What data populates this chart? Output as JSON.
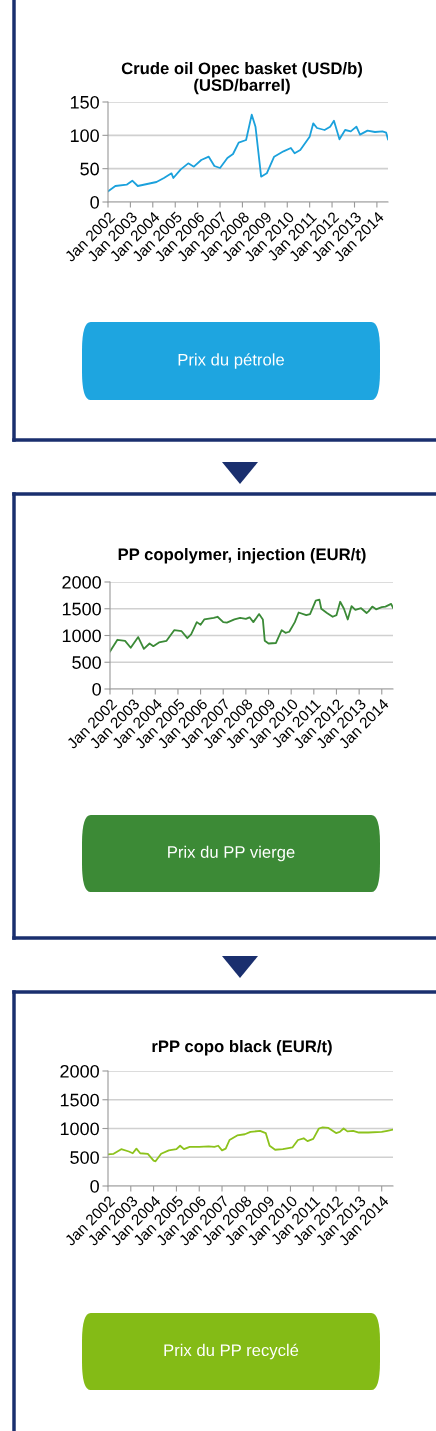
{
  "chart_data": [
    {
      "type": "line",
      "title": "Crude oil Opec basket (USD/b)\n(USD/barrel)",
      "annotations": [
        "Prix du pétrole"
      ],
      "series": [
        {
          "color": "#1ba1dc",
          "x": [
            "2002-01",
            "2002-05",
            "2002-11",
            "2003-02",
            "2003-05",
            "2003-10",
            "2004-03",
            "2004-07",
            "2004-11",
            "2004-12",
            "2005-04",
            "2005-08",
            "2005-11",
            "2006-03",
            "2006-07",
            "2006-10",
            "2007-01",
            "2007-05",
            "2007-08",
            "2007-11",
            "2008-03",
            "2008-06",
            "2008-08",
            "2008-11",
            "2009-02",
            "2009-06",
            "2009-11",
            "2010-03",
            "2010-05",
            "2010-08",
            "2011-01",
            "2011-03",
            "2011-05",
            "2011-09",
            "2011-12",
            "2012-02",
            "2012-05",
            "2012-08",
            "2012-11",
            "2013-02",
            "2013-04",
            "2013-08",
            "2013-12",
            "2014-04",
            "2014-06",
            "2014-07"
          ],
          "values": [
            16,
            24,
            26,
            32,
            24,
            27,
            30,
            36,
            43,
            36,
            49,
            58,
            53,
            63,
            68,
            54,
            51,
            66,
            72,
            89,
            93,
            131,
            113,
            38,
            43,
            68,
            76,
            81,
            73,
            78,
            98,
            118,
            111,
            108,
            113,
            122,
            94,
            108,
            106,
            113,
            101,
            107,
            105,
            106,
            104,
            94
          ]
        }
      ],
      "xlim": [
        "2002-01",
        "2014-07"
      ],
      "xticks": [
        {
          "value": "2002-01",
          "label": "Jan 2002"
        },
        {
          "value": "2003-01",
          "label": "Jan 2003"
        },
        {
          "value": "2004-01",
          "label": "Jan 2004"
        },
        {
          "value": "2005-01",
          "label": "Jan 2005"
        },
        {
          "value": "2006-01",
          "label": "Jan 2006"
        },
        {
          "value": "2007-01",
          "label": "Jan 2007"
        },
        {
          "value": "2008-01",
          "label": "Jan 2008"
        },
        {
          "value": "2009-01",
          "label": "Jan 2009"
        },
        {
          "value": "2010-01",
          "label": "Jan 2010"
        },
        {
          "value": "2011-01",
          "label": "Jan 2011"
        },
        {
          "value": "2012-01",
          "label": "Jan 2012"
        },
        {
          "value": "2013-01",
          "label": "Jan 2013"
        },
        {
          "value": "2014-01",
          "label": "Jan 2014"
        }
      ],
      "ylim": [
        0,
        150
      ],
      "yticks": [
        0,
        50,
        100,
        150
      ],
      "grid": "y",
      "legend": false
    },
    {
      "type": "line",
      "title": "PP copolymer, injection (EUR/t)",
      "annotations": [
        "Prix du PP vierge"
      ],
      "series": [
        {
          "color": "#3b8a37",
          "x": [
            "2002-01",
            "2002-05",
            "2002-09",
            "2002-12",
            "2003-04",
            "2003-07",
            "2003-10",
            "2003-12",
            "2004-03",
            "2004-07",
            "2004-11",
            "2005-03",
            "2005-06",
            "2005-08",
            "2005-11",
            "2006-01",
            "2006-03",
            "2006-08",
            "2006-10",
            "2007-01",
            "2007-03",
            "2007-07",
            "2007-10",
            "2008-01",
            "2008-03",
            "2008-05",
            "2008-08",
            "2008-10",
            "2008-11",
            "2009-01",
            "2009-05",
            "2009-08",
            "2009-10",
            "2009-12",
            "2010-03",
            "2010-05",
            "2010-09",
            "2010-11",
            "2011-02",
            "2011-04",
            "2011-05",
            "2011-08",
            "2011-11",
            "2012-01",
            "2012-03",
            "2012-05",
            "2012-07",
            "2012-09",
            "2012-11",
            "2013-02",
            "2013-05",
            "2013-06",
            "2013-08",
            "2013-10",
            "2014-01",
            "2014-03",
            "2014-06",
            "2014-07"
          ],
          "values": [
            700,
            920,
            900,
            770,
            970,
            750,
            850,
            800,
            870,
            900,
            1100,
            1080,
            950,
            1020,
            1250,
            1200,
            1300,
            1330,
            1350,
            1250,
            1240,
            1300,
            1330,
            1310,
            1340,
            1250,
            1400,
            1300,
            900,
            850,
            860,
            1100,
            1050,
            1070,
            1250,
            1430,
            1380,
            1400,
            1650,
            1670,
            1500,
            1420,
            1350,
            1380,
            1630,
            1500,
            1300,
            1550,
            1480,
            1510,
            1420,
            1450,
            1540,
            1490,
            1530,
            1540,
            1590,
            1520
          ]
        }
      ],
      "xlim": [
        "2002-01",
        "2014-07"
      ],
      "xticks": [
        {
          "value": "2002-01",
          "label": "Jan 2002"
        },
        {
          "value": "2003-01",
          "label": "Jan 2003"
        },
        {
          "value": "2004-01",
          "label": "Jan 2004"
        },
        {
          "value": "2005-01",
          "label": "Jan 2005"
        },
        {
          "value": "2006-01",
          "label": "Jan 2006"
        },
        {
          "value": "2007-01",
          "label": "Jan 2007"
        },
        {
          "value": "2008-01",
          "label": "Jan 2008"
        },
        {
          "value": "2009-01",
          "label": "Jan 2009"
        },
        {
          "value": "2010-01",
          "label": "Jan 2010"
        },
        {
          "value": "2011-01",
          "label": "Jan 2011"
        },
        {
          "value": "2012-01",
          "label": "Jan 2012"
        },
        {
          "value": "2013-01",
          "label": "Jan 2013"
        },
        {
          "value": "2014-01",
          "label": "Jan 2014"
        }
      ],
      "ylim": [
        0,
        2000
      ],
      "yticks": [
        0,
        500,
        1000,
        1500,
        2000
      ],
      "grid": "y",
      "legend": false
    },
    {
      "type": "line",
      "title": "rPP copo black (EUR/t)",
      "annotations": [
        "Prix du PP recyclé"
      ],
      "series": [
        {
          "color": "#8cc21c",
          "x": [
            "2002-01",
            "2002-04",
            "2002-08",
            "2002-12",
            "2003-02",
            "2003-04",
            "2003-06",
            "2003-10",
            "2004-01",
            "2004-02",
            "2004-05",
            "2004-09",
            "2005-01",
            "2005-03",
            "2005-05",
            "2005-08",
            "2006-01",
            "2006-06",
            "2006-09",
            "2006-11",
            "2007-01",
            "2007-03",
            "2007-05",
            "2007-09",
            "2008-01",
            "2008-04",
            "2008-09",
            "2008-12",
            "2009-02",
            "2009-05",
            "2009-09",
            "2009-12",
            "2010-02",
            "2010-05",
            "2010-08",
            "2010-10",
            "2011-01",
            "2011-04",
            "2011-06",
            "2011-09",
            "2012-01",
            "2012-03",
            "2012-05",
            "2012-07",
            "2012-10",
            "2013-01",
            "2013-06",
            "2014-01",
            "2014-04",
            "2014-07"
          ],
          "values": [
            550,
            560,
            640,
            600,
            570,
            650,
            570,
            560,
            440,
            430,
            560,
            620,
            640,
            700,
            640,
            680,
            680,
            690,
            680,
            700,
            620,
            650,
            800,
            880,
            900,
            940,
            960,
            920,
            700,
            630,
            640,
            660,
            670,
            800,
            830,
            780,
            820,
            1000,
            1020,
            1010,
            920,
            940,
            1000,
            950,
            960,
            930,
            930,
            940,
            960,
            980
          ]
        }
      ],
      "xlim": [
        "2002-01",
        "2014-07"
      ],
      "xticks": [
        {
          "value": "2002-01",
          "label": "Jan 2002"
        },
        {
          "value": "2003-01",
          "label": "Jan 2003"
        },
        {
          "value": "2004-01",
          "label": "Jan 2004"
        },
        {
          "value": "2005-01",
          "label": "Jan 2005"
        },
        {
          "value": "2006-01",
          "label": "Jan 2006"
        },
        {
          "value": "2007-01",
          "label": "Jan 2007"
        },
        {
          "value": "2008-01",
          "label": "Jan 2008"
        },
        {
          "value": "2009-01",
          "label": "Jan 2009"
        },
        {
          "value": "2010-01",
          "label": "Jan 2010"
        },
        {
          "value": "2011-01",
          "label": "Jan 2011"
        },
        {
          "value": "2012-01",
          "label": "Jan 2012"
        },
        {
          "value": "2013-01",
          "label": "Jan 2013"
        },
        {
          "value": "2014-01",
          "label": "Jan 2014"
        }
      ],
      "ylim": [
        0,
        2000
      ],
      "yticks": [
        0,
        500,
        1000,
        1500,
        2000
      ],
      "grid": "y",
      "legend": false
    }
  ]
}
